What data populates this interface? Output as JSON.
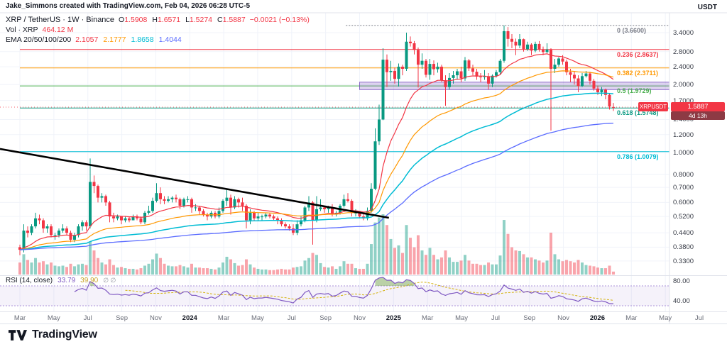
{
  "header": {
    "attribution": "Jake_Simmons created with TradingView.com, Feb 04, 2026 06:28 UTC-5"
  },
  "legend": {
    "title": "XRP / TetherUS · 1W · Binance",
    "ohlc": [
      {
        "k": "O",
        "v": "1.5908"
      },
      {
        "k": "H",
        "v": "1.6571"
      },
      {
        "k": "L",
        "v": "1.5274"
      },
      {
        "k": "C",
        "v": "1.5887"
      }
    ],
    "change": "−0.0021 (−0.13%)",
    "volume_label": "Vol · XRP",
    "volume_value": "464.12 M",
    "ema_label": "EMA 20/50/100/200",
    "ema_values": [
      {
        "v": "2.1057",
        "color": "#f23645"
      },
      {
        "v": "2.1777",
        "color": "#ff9800"
      },
      {
        "v": "1.8658",
        "color": "#00bcd4"
      },
      {
        "v": "1.4044",
        "color": "#5b6cff"
      }
    ]
  },
  "rsi_legend": {
    "label": "RSI (14, close)",
    "values": [
      {
        "v": "33.79",
        "color": "#7e57c2"
      },
      {
        "v": "39.90",
        "color": "#c9a227"
      }
    ],
    "icons": [
      "∅",
      "∅"
    ]
  },
  "price_axis": {
    "currency": "USDT",
    "ticks": [
      {
        "label": "3.4000",
        "value": 3.4
      },
      {
        "label": "2.8000",
        "value": 2.8
      },
      {
        "label": "2.4000",
        "value": 2.4
      },
      {
        "label": "2.0000",
        "value": 2.0
      },
      {
        "label": "1.7000",
        "value": 1.7
      },
      {
        "label": "1.4000",
        "value": 1.4
      },
      {
        "label": "1.2000",
        "value": 1.2
      },
      {
        "label": "1.0000",
        "value": 1.0
      },
      {
        "label": "0.8000",
        "value": 0.8
      },
      {
        "label": "0.7000",
        "value": 0.7
      },
      {
        "label": "0.6000",
        "value": 0.6
      },
      {
        "label": "0.5200",
        "value": 0.52
      },
      {
        "label": "0.4400",
        "value": 0.44
      },
      {
        "label": "0.3800",
        "value": 0.38
      },
      {
        "label": "0.3300",
        "value": 0.33
      }
    ],
    "price_badge": {
      "text": "1.5887",
      "countdown": "4d 13h",
      "color": "#f23645",
      "countdown_color": "#8d3a44"
    },
    "symbol_badge": {
      "text": "XRPUSDT",
      "color": "#f23645"
    }
  },
  "rsi_axis": {
    "ticks": [
      {
        "label": "80.00",
        "value": 80
      },
      {
        "label": "40.00",
        "value": 40
      }
    ]
  },
  "footer": {
    "brand": "TradingView"
  },
  "chart_data": {
    "type": "candlestick",
    "title": "XRP / TetherUS · 1W · Binance",
    "price_scale": "log",
    "visible_price_range": [
      0.33,
      3.66
    ],
    "colors": {
      "up": "#089981",
      "down": "#f23645",
      "vol_up": "rgba(8,153,129,0.45)",
      "vol_down": "rgba(242,54,69,0.45)"
    },
    "current_price": 1.5887,
    "candles": [
      [
        0.38,
        0.39,
        0.35,
        0.37,
        1900
      ],
      [
        0.37,
        0.48,
        0.36,
        0.45,
        3200
      ],
      [
        0.45,
        0.47,
        0.42,
        0.44,
        2300
      ],
      [
        0.44,
        0.48,
        0.43,
        0.47,
        1900
      ],
      [
        0.47,
        0.54,
        0.46,
        0.51,
        2600
      ],
      [
        0.51,
        0.53,
        0.48,
        0.5,
        1900
      ],
      [
        0.5,
        0.51,
        0.44,
        0.46,
        2100
      ],
      [
        0.46,
        0.48,
        0.44,
        0.47,
        1600
      ],
      [
        0.47,
        0.48,
        0.42,
        0.43,
        1900
      ],
      [
        0.43,
        0.44,
        0.41,
        0.43,
        1400
      ],
      [
        0.43,
        0.46,
        0.42,
        0.45,
        1300
      ],
      [
        0.45,
        0.48,
        0.44,
        0.46,
        1400
      ],
      [
        0.46,
        0.47,
        0.43,
        0.44,
        1200
      ],
      [
        0.44,
        0.45,
        0.4,
        0.41,
        1700
      ],
      [
        0.41,
        0.44,
        0.4,
        0.43,
        1300
      ],
      [
        0.43,
        0.48,
        0.42,
        0.47,
        1600
      ],
      [
        0.47,
        0.5,
        0.45,
        0.49,
        1700
      ],
      [
        0.49,
        0.5,
        0.45,
        0.47,
        1500
      ],
      [
        0.47,
        0.94,
        0.46,
        0.74,
        5200
      ],
      [
        0.74,
        0.79,
        0.66,
        0.71,
        3800
      ],
      [
        0.71,
        0.72,
        0.6,
        0.63,
        2600
      ],
      [
        0.63,
        0.66,
        0.6,
        0.64,
        1900
      ],
      [
        0.64,
        0.65,
        0.58,
        0.6,
        1600
      ],
      [
        0.6,
        0.61,
        0.49,
        0.52,
        2400
      ],
      [
        0.52,
        0.54,
        0.49,
        0.51,
        1500
      ],
      [
        0.51,
        0.53,
        0.5,
        0.52,
        1100
      ],
      [
        0.52,
        0.52,
        0.48,
        0.5,
        1200
      ],
      [
        0.5,
        0.52,
        0.49,
        0.51,
        1000
      ],
      [
        0.51,
        0.52,
        0.49,
        0.5,
        900
      ],
      [
        0.5,
        0.53,
        0.5,
        0.52,
        900
      ],
      [
        0.52,
        0.53,
        0.5,
        0.51,
        800
      ],
      [
        0.51,
        0.52,
        0.48,
        0.49,
        1000
      ],
      [
        0.49,
        0.55,
        0.48,
        0.54,
        1400
      ],
      [
        0.54,
        0.58,
        0.53,
        0.55,
        1700
      ],
      [
        0.55,
        0.63,
        0.54,
        0.61,
        2400
      ],
      [
        0.61,
        0.73,
        0.6,
        0.66,
        3300
      ],
      [
        0.66,
        0.7,
        0.59,
        0.62,
        2600
      ],
      [
        0.62,
        0.64,
        0.59,
        0.61,
        1700
      ],
      [
        0.61,
        0.64,
        0.6,
        0.62,
        1400
      ],
      [
        0.62,
        0.64,
        0.6,
        0.63,
        1300
      ],
      [
        0.63,
        0.65,
        0.6,
        0.62,
        1300
      ],
      [
        0.62,
        0.63,
        0.56,
        0.58,
        1500
      ],
      [
        0.58,
        0.63,
        0.57,
        0.62,
        1300
      ],
      [
        0.62,
        0.64,
        0.6,
        0.62,
        1100
      ],
      [
        0.62,
        0.63,
        0.54,
        0.57,
        1700
      ],
      [
        0.57,
        0.59,
        0.55,
        0.57,
        1100
      ],
      [
        0.57,
        0.58,
        0.53,
        0.55,
        1100
      ],
      [
        0.55,
        0.56,
        0.52,
        0.53,
        1000
      ],
      [
        0.53,
        0.54,
        0.5,
        0.52,
        1000
      ],
      [
        0.52,
        0.55,
        0.51,
        0.54,
        900
      ],
      [
        0.54,
        0.55,
        0.51,
        0.52,
        800
      ],
      [
        0.52,
        0.57,
        0.51,
        0.55,
        1100
      ],
      [
        0.55,
        0.62,
        0.54,
        0.61,
        1900
      ],
      [
        0.61,
        0.69,
        0.58,
        0.63,
        2800
      ],
      [
        0.63,
        0.65,
        0.53,
        0.57,
        2400
      ],
      [
        0.57,
        0.64,
        0.56,
        0.62,
        1800
      ],
      [
        0.62,
        0.63,
        0.57,
        0.6,
        1400
      ],
      [
        0.6,
        0.63,
        0.55,
        0.58,
        1500
      ],
      [
        0.58,
        0.59,
        0.46,
        0.5,
        2400
      ],
      [
        0.5,
        0.56,
        0.48,
        0.54,
        1600
      ],
      [
        0.54,
        0.55,
        0.5,
        0.51,
        1100
      ],
      [
        0.51,
        0.54,
        0.5,
        0.52,
        900
      ],
      [
        0.52,
        0.53,
        0.5,
        0.52,
        800
      ],
      [
        0.52,
        0.54,
        0.51,
        0.53,
        800
      ],
      [
        0.53,
        0.54,
        0.51,
        0.52,
        700
      ],
      [
        0.52,
        0.53,
        0.5,
        0.51,
        700
      ],
      [
        0.51,
        0.52,
        0.48,
        0.5,
        800
      ],
      [
        0.5,
        0.51,
        0.47,
        0.48,
        900
      ],
      [
        0.48,
        0.49,
        0.46,
        0.47,
        800
      ],
      [
        0.47,
        0.48,
        0.45,
        0.46,
        800
      ],
      [
        0.46,
        0.48,
        0.43,
        0.44,
        1100
      ],
      [
        0.44,
        0.5,
        0.43,
        0.48,
        1200
      ],
      [
        0.48,
        0.52,
        0.47,
        0.5,
        1300
      ],
      [
        0.5,
        0.58,
        0.49,
        0.57,
        2200
      ],
      [
        0.57,
        0.64,
        0.55,
        0.6,
        2600
      ],
      [
        0.6,
        0.61,
        0.39,
        0.5,
        3400
      ],
      [
        0.5,
        0.64,
        0.49,
        0.56,
        3100
      ],
      [
        0.56,
        0.62,
        0.55,
        0.57,
        1800
      ],
      [
        0.57,
        0.58,
        0.54,
        0.56,
        1200
      ],
      [
        0.56,
        0.58,
        0.54,
        0.57,
        1100
      ],
      [
        0.57,
        0.59,
        0.52,
        0.53,
        1300
      ],
      [
        0.53,
        0.55,
        0.52,
        0.54,
        900
      ],
      [
        0.54,
        0.59,
        0.53,
        0.58,
        1300
      ],
      [
        0.58,
        0.65,
        0.57,
        0.62,
        2100
      ],
      [
        0.62,
        0.66,
        0.6,
        0.61,
        1700
      ],
      [
        0.61,
        0.62,
        0.52,
        0.54,
        1700
      ],
      [
        0.54,
        0.56,
        0.52,
        0.54,
        1000
      ],
      [
        0.54,
        0.55,
        0.51,
        0.52,
        900
      ],
      [
        0.52,
        0.54,
        0.5,
        0.51,
        900
      ],
      [
        0.51,
        0.57,
        0.5,
        0.55,
        1700
      ],
      [
        0.55,
        0.73,
        0.54,
        0.69,
        4800
      ],
      [
        0.69,
        1.28,
        0.68,
        1.12,
        8200
      ],
      [
        1.12,
        1.63,
        1.08,
        1.4,
        9000
      ],
      [
        1.4,
        2.9,
        1.39,
        2.58,
        9500
      ],
      [
        2.58,
        2.72,
        1.95,
        2.27,
        7800
      ],
      [
        2.27,
        2.55,
        2.08,
        2.3,
        5600
      ],
      [
        2.3,
        2.38,
        2.02,
        2.12,
        4200
      ],
      [
        2.12,
        2.48,
        1.96,
        2.4,
        4600
      ],
      [
        2.4,
        2.45,
        2.2,
        2.35,
        3400
      ],
      [
        2.35,
        3.4,
        2.3,
        3.1,
        7800
      ],
      [
        3.1,
        3.27,
        2.95,
        3.05,
        5800
      ],
      [
        3.05,
        3.12,
        2.72,
        2.85,
        4300
      ],
      [
        2.85,
        2.92,
        1.94,
        2.45,
        6200
      ],
      [
        2.45,
        2.75,
        2.35,
        2.55,
        3800
      ],
      [
        2.55,
        2.6,
        2.15,
        2.21,
        3100
      ],
      [
        2.21,
        2.6,
        2.1,
        2.47,
        4200
      ],
      [
        2.47,
        2.56,
        2.2,
        2.34,
        3100
      ],
      [
        2.34,
        2.5,
        2.26,
        2.4,
        2400
      ],
      [
        2.4,
        2.45,
        2.05,
        2.09,
        2700
      ],
      [
        2.09,
        2.2,
        1.61,
        1.95,
        3800
      ],
      [
        1.95,
        2.25,
        1.9,
        2.14,
        2700
      ],
      [
        2.14,
        2.3,
        2.02,
        2.2,
        2000
      ],
      [
        2.2,
        2.35,
        2.1,
        2.29,
        2000
      ],
      [
        2.29,
        2.4,
        2.05,
        2.13,
        2200
      ],
      [
        2.13,
        2.65,
        2.08,
        2.56,
        3100
      ],
      [
        2.56,
        2.6,
        2.3,
        2.36,
        2200
      ],
      [
        2.36,
        2.45,
        2.2,
        2.28,
        1700
      ],
      [
        2.28,
        2.35,
        2.1,
        2.17,
        1700
      ],
      [
        2.17,
        2.25,
        2.05,
        2.16,
        1500
      ],
      [
        2.16,
        2.32,
        2.1,
        2.18,
        1500
      ],
      [
        2.18,
        2.25,
        1.9,
        2.02,
        1900
      ],
      [
        2.02,
        2.22,
        1.95,
        2.19,
        1600
      ],
      [
        2.19,
        2.32,
        2.15,
        2.27,
        1600
      ],
      [
        2.27,
        2.6,
        2.21,
        2.55,
        3000
      ],
      [
        2.55,
        3.66,
        2.5,
        3.45,
        8600
      ],
      [
        3.45,
        3.6,
        2.95,
        3.19,
        6400
      ],
      [
        3.19,
        3.35,
        2.9,
        3.1,
        4300
      ],
      [
        3.1,
        3.2,
        2.7,
        2.98,
        3800
      ],
      [
        2.98,
        3.35,
        2.9,
        3.18,
        3700
      ],
      [
        3.18,
        3.2,
        2.8,
        2.87,
        3200
      ],
      [
        2.87,
        3.1,
        2.82,
        3.01,
        2700
      ],
      [
        3.01,
        3.05,
        2.7,
        2.83,
        2700
      ],
      [
        2.83,
        3.1,
        2.78,
        3.03,
        2400
      ],
      [
        3.03,
        3.12,
        2.8,
        2.86,
        2200
      ],
      [
        2.86,
        2.95,
        2.7,
        2.79,
        1900
      ],
      [
        2.79,
        3.05,
        2.75,
        2.86,
        2200
      ],
      [
        2.86,
        2.9,
        1.25,
        2.35,
        6600
      ],
      [
        2.35,
        2.6,
        2.25,
        2.45,
        3200
      ],
      [
        2.45,
        2.65,
        2.4,
        2.61,
        2400
      ],
      [
        2.61,
        2.7,
        2.45,
        2.53,
        2100
      ],
      [
        2.53,
        2.58,
        2.2,
        2.27,
        2300
      ],
      [
        2.27,
        2.35,
        2.05,
        2.21,
        2100
      ],
      [
        2.21,
        2.3,
        2.0,
        2.13,
        1900
      ],
      [
        2.13,
        2.2,
        1.85,
        1.97,
        2300
      ],
      [
        1.97,
        2.25,
        1.95,
        2.18,
        1900
      ],
      [
        2.18,
        2.3,
        2.15,
        2.24,
        1500
      ],
      [
        2.24,
        2.28,
        2.0,
        2.08,
        1400
      ],
      [
        2.08,
        2.12,
        1.88,
        1.92,
        1300
      ],
      [
        1.92,
        1.98,
        1.8,
        1.85,
        1100
      ],
      [
        1.85,
        1.95,
        1.78,
        1.9,
        1000
      ],
      [
        1.9,
        1.92,
        1.72,
        1.8,
        1000
      ],
      [
        1.8,
        1.83,
        1.55,
        1.6,
        1400
      ],
      [
        1.5908,
        1.6571,
        1.5274,
        1.5887,
        464
      ]
    ],
    "emas": [
      {
        "period": 20,
        "color": "#f23645",
        "width": 1.2
      },
      {
        "period": 50,
        "color": "#ff9800",
        "width": 1.2
      },
      {
        "period": 100,
        "color": "#00bcd4",
        "width": 1.5
      },
      {
        "period": 200,
        "color": "#5b6cff",
        "width": 1.3
      }
    ],
    "fib_levels": [
      {
        "label": "0 (3.6600)",
        "price": 3.66,
        "color": "#787b86",
        "dash": "2,2",
        "from_wk": 83.5
      },
      {
        "label": "0.236 (2.8637)",
        "price": 2.8637,
        "color": "#f23645",
        "dash": "",
        "from_wk": 0
      },
      {
        "label": "0.382 (2.3711)",
        "price": 2.3711,
        "color": "#ff9800",
        "dash": "",
        "from_wk": 0
      },
      {
        "label": "0.5 (1.9729)",
        "price": 1.9729,
        "color": "#4caf50",
        "dash": "",
        "from_wk": 0
      },
      {
        "label": "0.618 (1.5748)",
        "price": 1.5748,
        "color": "#089981",
        "dash": "",
        "from_wk": 0
      },
      {
        "label": "0.786 (1.0079)",
        "price": 1.0079,
        "color": "#00bcd4",
        "dash": "",
        "from_wk": 0
      }
    ],
    "trendline": {
      "from": {
        "wk": -5.1,
        "price": 1.037
      },
      "to": {
        "wk": 94.5,
        "price": 0.513
      },
      "color": "#000000",
      "width": 2.6
    },
    "zone": {
      "from_wk": 87,
      "price_top": 2.05,
      "price_bottom": 1.9,
      "fill": "rgba(103,58,183,0.22)",
      "stroke": "rgba(103,58,183,0.7)"
    },
    "time_labels": [
      {
        "label": "Mar",
        "wk": 0
      },
      {
        "label": "May",
        "wk": 8.7
      },
      {
        "label": "Jul",
        "wk": 17.4
      },
      {
        "label": "Sep",
        "wk": 26.1
      },
      {
        "label": "Nov",
        "wk": 34.8
      },
      {
        "label": "2024",
        "wk": 43.5,
        "year": true
      },
      {
        "label": "Mar",
        "wk": 52.2
      },
      {
        "label": "May",
        "wk": 60.9
      },
      {
        "label": "Jul",
        "wk": 69.6
      },
      {
        "label": "Sep",
        "wk": 78.3
      },
      {
        "label": "Nov",
        "wk": 87
      },
      {
        "label": "2025",
        "wk": 95.7,
        "year": true
      },
      {
        "label": "Mar",
        "wk": 104.4
      },
      {
        "label": "May",
        "wk": 113.1
      },
      {
        "label": "Jul",
        "wk": 121.8
      },
      {
        "label": "Sep",
        "wk": 130.5
      },
      {
        "label": "Nov",
        "wk": 139.2
      },
      {
        "label": "2026",
        "wk": 147.9,
        "year": true
      },
      {
        "label": "Mar",
        "wk": 156.6
      },
      {
        "label": "May",
        "wk": 165.3
      },
      {
        "label": "Jul",
        "wk": 174
      }
    ],
    "rsi": {
      "period": 14,
      "current": 33.79,
      "ma": 39.9,
      "upper": 70,
      "lower": 30,
      "line_color": "#7e57c2",
      "ma_color": "#d4b20e",
      "band_line_color": "#ab92d9",
      "band_fill": "rgba(126,87,194,0.08)",
      "over_fill": "rgba(102,153,60,0.45)",
      "under_fill": "rgba(242,54,69,0.35)"
    }
  }
}
